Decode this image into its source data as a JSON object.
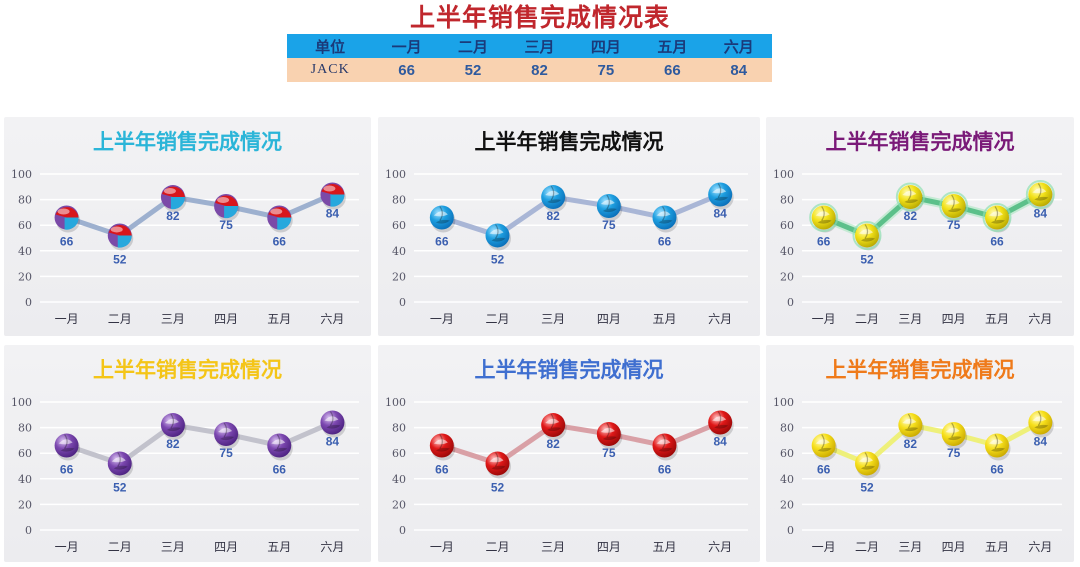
{
  "title": "上半年销售完成情况表",
  "table": {
    "headers": [
      "单位",
      "一月",
      "二月",
      "三月",
      "四月",
      "五月",
      "六月"
    ],
    "rows": [
      [
        "JACK",
        "66",
        "52",
        "82",
        "75",
        "66",
        "84"
      ]
    ],
    "header_bg": "#1aa3e8",
    "row_bg": "#f9d2b0"
  },
  "chart_data": [
    {
      "type": "line",
      "title": "上半年销售完成情况",
      "title_color": "#2bb5d8",
      "categories": [
        "一月",
        "二月",
        "三月",
        "四月",
        "五月",
        "六月"
      ],
      "values": [
        66,
        52,
        82,
        75,
        66,
        84
      ],
      "yticks": [
        0,
        20,
        40,
        60,
        80,
        100
      ],
      "ylim": [
        0,
        100
      ],
      "line_color": "#9db0cf",
      "marker_style": "tricolor",
      "marker_colors": [
        "#d8161c",
        "#7b4aa8",
        "#27a8dd"
      ],
      "data_labels": true,
      "grid": true
    },
    {
      "type": "line",
      "title": "上半年销售完成情况",
      "title_color": "#111111",
      "categories": [
        "一月",
        "二月",
        "三月",
        "四月",
        "五月",
        "六月"
      ],
      "values": [
        66,
        52,
        82,
        75,
        66,
        84
      ],
      "yticks": [
        0,
        20,
        40,
        60,
        80,
        100
      ],
      "ylim": [
        0,
        100
      ],
      "line_color": "#a9b6d6",
      "marker_style": "swirl",
      "marker_colors": [
        "#1e9fe0",
        "#0a6eb8",
        "#9fe0ff"
      ],
      "data_labels": true,
      "grid": true
    },
    {
      "type": "line",
      "title": "上半年销售完成情况",
      "title_color": "#7a1a78",
      "categories": [
        "一月",
        "二月",
        "三月",
        "四月",
        "五月",
        "六月"
      ],
      "values": [
        66,
        52,
        82,
        75,
        66,
        84
      ],
      "yticks": [
        0,
        20,
        40,
        60,
        80,
        100
      ],
      "ylim": [
        0,
        100
      ],
      "line_color": "#5cc08a",
      "marker_style": "swirl",
      "marker_colors": [
        "#f3e21a",
        "#b7a800",
        "#fffab0"
      ],
      "data_labels": true,
      "grid": true
    },
    {
      "type": "line",
      "title": "上半年销售完成情况",
      "title_color": "#f4c518",
      "categories": [
        "一月",
        "二月",
        "三月",
        "四月",
        "五月",
        "六月"
      ],
      "values": [
        66,
        52,
        82,
        75,
        66,
        84
      ],
      "yticks": [
        0,
        20,
        40,
        60,
        80,
        100
      ],
      "ylim": [
        0,
        100
      ],
      "line_color": "#c2c2cc",
      "marker_style": "swirl",
      "marker_colors": [
        "#7c48b0",
        "#4c2280",
        "#d8c0f0"
      ],
      "data_labels": true,
      "grid": true
    },
    {
      "type": "line",
      "title": "上半年销售完成情况",
      "title_color": "#3f6fd0",
      "categories": [
        "一月",
        "二月",
        "三月",
        "四月",
        "五月",
        "六月"
      ],
      "values": [
        66,
        52,
        82,
        75,
        66,
        84
      ],
      "yticks": [
        0,
        20,
        40,
        60,
        80,
        100
      ],
      "ylim": [
        0,
        100
      ],
      "line_color": "#d9a0a6",
      "marker_style": "swirl",
      "marker_colors": [
        "#e01818",
        "#980808",
        "#ffc0c0"
      ],
      "data_labels": true,
      "grid": true
    },
    {
      "type": "line",
      "title": "上半年销售完成情况",
      "title_color": "#ef7a1a",
      "categories": [
        "一月",
        "二月",
        "三月",
        "四月",
        "五月",
        "六月"
      ],
      "values": [
        66,
        52,
        82,
        75,
        66,
        84
      ],
      "yticks": [
        0,
        20,
        40,
        60,
        80,
        100
      ],
      "ylim": [
        0,
        100
      ],
      "line_color": "#eef07a",
      "marker_style": "swirl",
      "marker_colors": [
        "#f7e01c",
        "#c9a800",
        "#fffbc0"
      ],
      "data_labels": true,
      "grid": true
    }
  ],
  "label_color": "#3b5fb0",
  "axis_text_color": "#555566"
}
